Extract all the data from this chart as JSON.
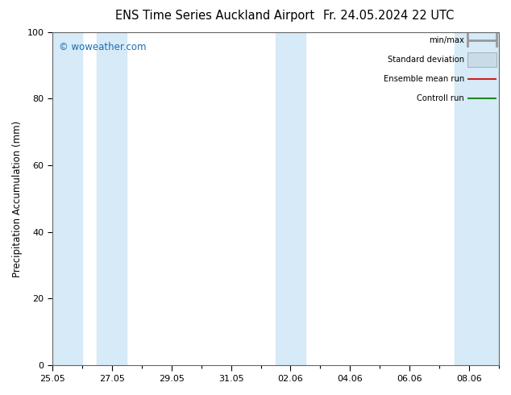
{
  "title_left": "ENS Time Series Auckland Airport",
  "title_right": "Fr. 24.05.2024 22 UTC",
  "ylabel": "Precipitation Accumulation (mm)",
  "ylim": [
    0,
    100
  ],
  "yticks": [
    0,
    20,
    40,
    60,
    80,
    100
  ],
  "xtick_labels": [
    "25.05",
    "27.05",
    "29.05",
    "31.05",
    "02.06",
    "04.06",
    "06.06",
    "08.06"
  ],
  "xtick_positions": [
    0,
    2,
    4,
    6,
    8,
    10,
    12,
    14
  ],
  "x_min": 0,
  "x_max": 15,
  "bands": [
    [
      0.0,
      1.0
    ],
    [
      1.5,
      2.5
    ],
    [
      7.5,
      8.5
    ],
    [
      13.5,
      15.0
    ]
  ],
  "band_color": "#d6eaf7",
  "background_color": "#ffffff",
  "watermark_text": "© woweather.com",
  "watermark_color": "#1a6eb5",
  "legend_items": [
    {
      "label": "min/max",
      "color": "#999999",
      "lw": 2.0,
      "style": "solid",
      "type": "minmax"
    },
    {
      "label": "Standard deviation",
      "color": "#c8dce8",
      "lw": 6.0,
      "style": "solid",
      "type": "band"
    },
    {
      "label": "Ensemble mean run",
      "color": "#cc2020",
      "lw": 1.5,
      "style": "solid",
      "type": "line"
    },
    {
      "label": "Controll run",
      "color": "#228822",
      "lw": 1.5,
      "style": "solid",
      "type": "line"
    }
  ],
  "title_fontsize": 10.5,
  "label_fontsize": 8.5,
  "tick_fontsize": 8.0
}
